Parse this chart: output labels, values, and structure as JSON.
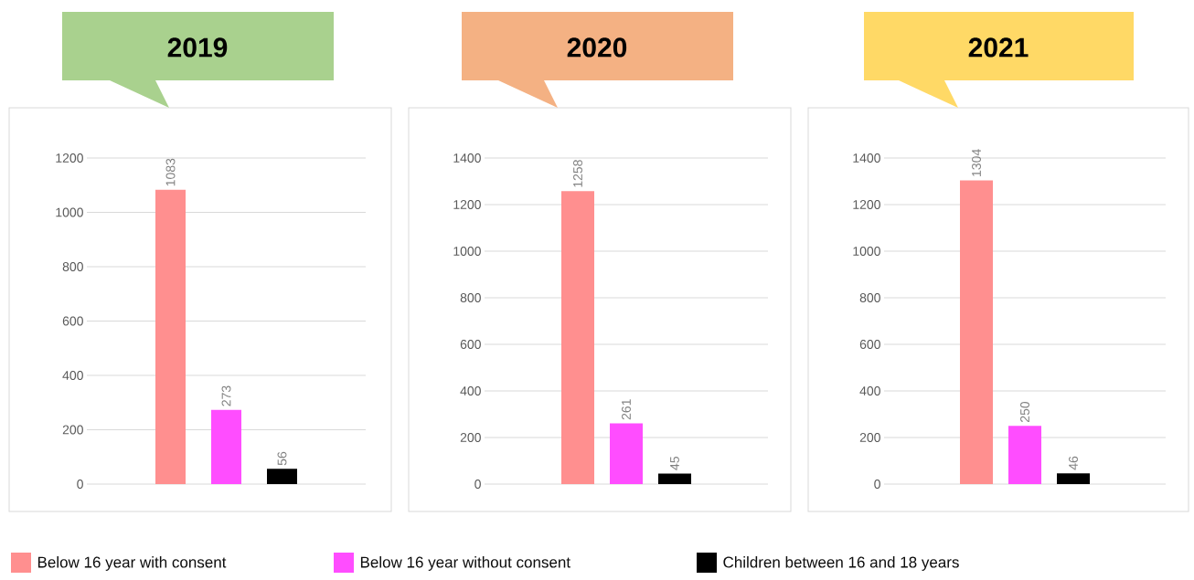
{
  "chart_data": [
    {
      "type": "bar",
      "title": "2019",
      "categories": [
        null
      ],
      "ylim": [
        0,
        1200
      ],
      "yticks": [
        0,
        200,
        400,
        600,
        800,
        1000,
        1200
      ],
      "grid": "y",
      "data_labels": true,
      "legend": "bottom",
      "series": [
        {
          "name": "Below 16 year with consent",
          "color": "#ff8f8f",
          "values": [
            1083
          ]
        },
        {
          "name": "Below 16 year without consent",
          "color": "#ff4dff",
          "values": [
            273
          ]
        },
        {
          "name": "Children between 16 and 18 years",
          "color": "#000000",
          "values": [
            56
          ]
        }
      ]
    },
    {
      "type": "bar",
      "title": "2020",
      "categories": [
        null
      ],
      "ylim": [
        0,
        1400
      ],
      "yticks": [
        0,
        200,
        400,
        600,
        800,
        1000,
        1200,
        1400
      ],
      "grid": "y",
      "data_labels": true,
      "series": [
        {
          "color": "#ff8f8f",
          "values": [
            1258
          ]
        },
        {
          "color": "#ff4dff",
          "values": [
            261
          ]
        },
        {
          "color": "#000000",
          "values": [
            45
          ]
        }
      ]
    },
    {
      "type": "bar",
      "title": "2021",
      "categories": [
        null
      ],
      "ylim": [
        0,
        1400
      ],
      "yticks": [
        0,
        200,
        400,
        600,
        800,
        1000,
        1200,
        1400
      ],
      "grid": "y",
      "data_labels": true,
      "series": [
        {
          "color": "#ff8f8f",
          "values": [
            1304
          ]
        },
        {
          "color": "#ff4dff",
          "values": [
            250
          ]
        },
        {
          "color": "#000000",
          "values": [
            46
          ]
        }
      ]
    }
  ]
}
